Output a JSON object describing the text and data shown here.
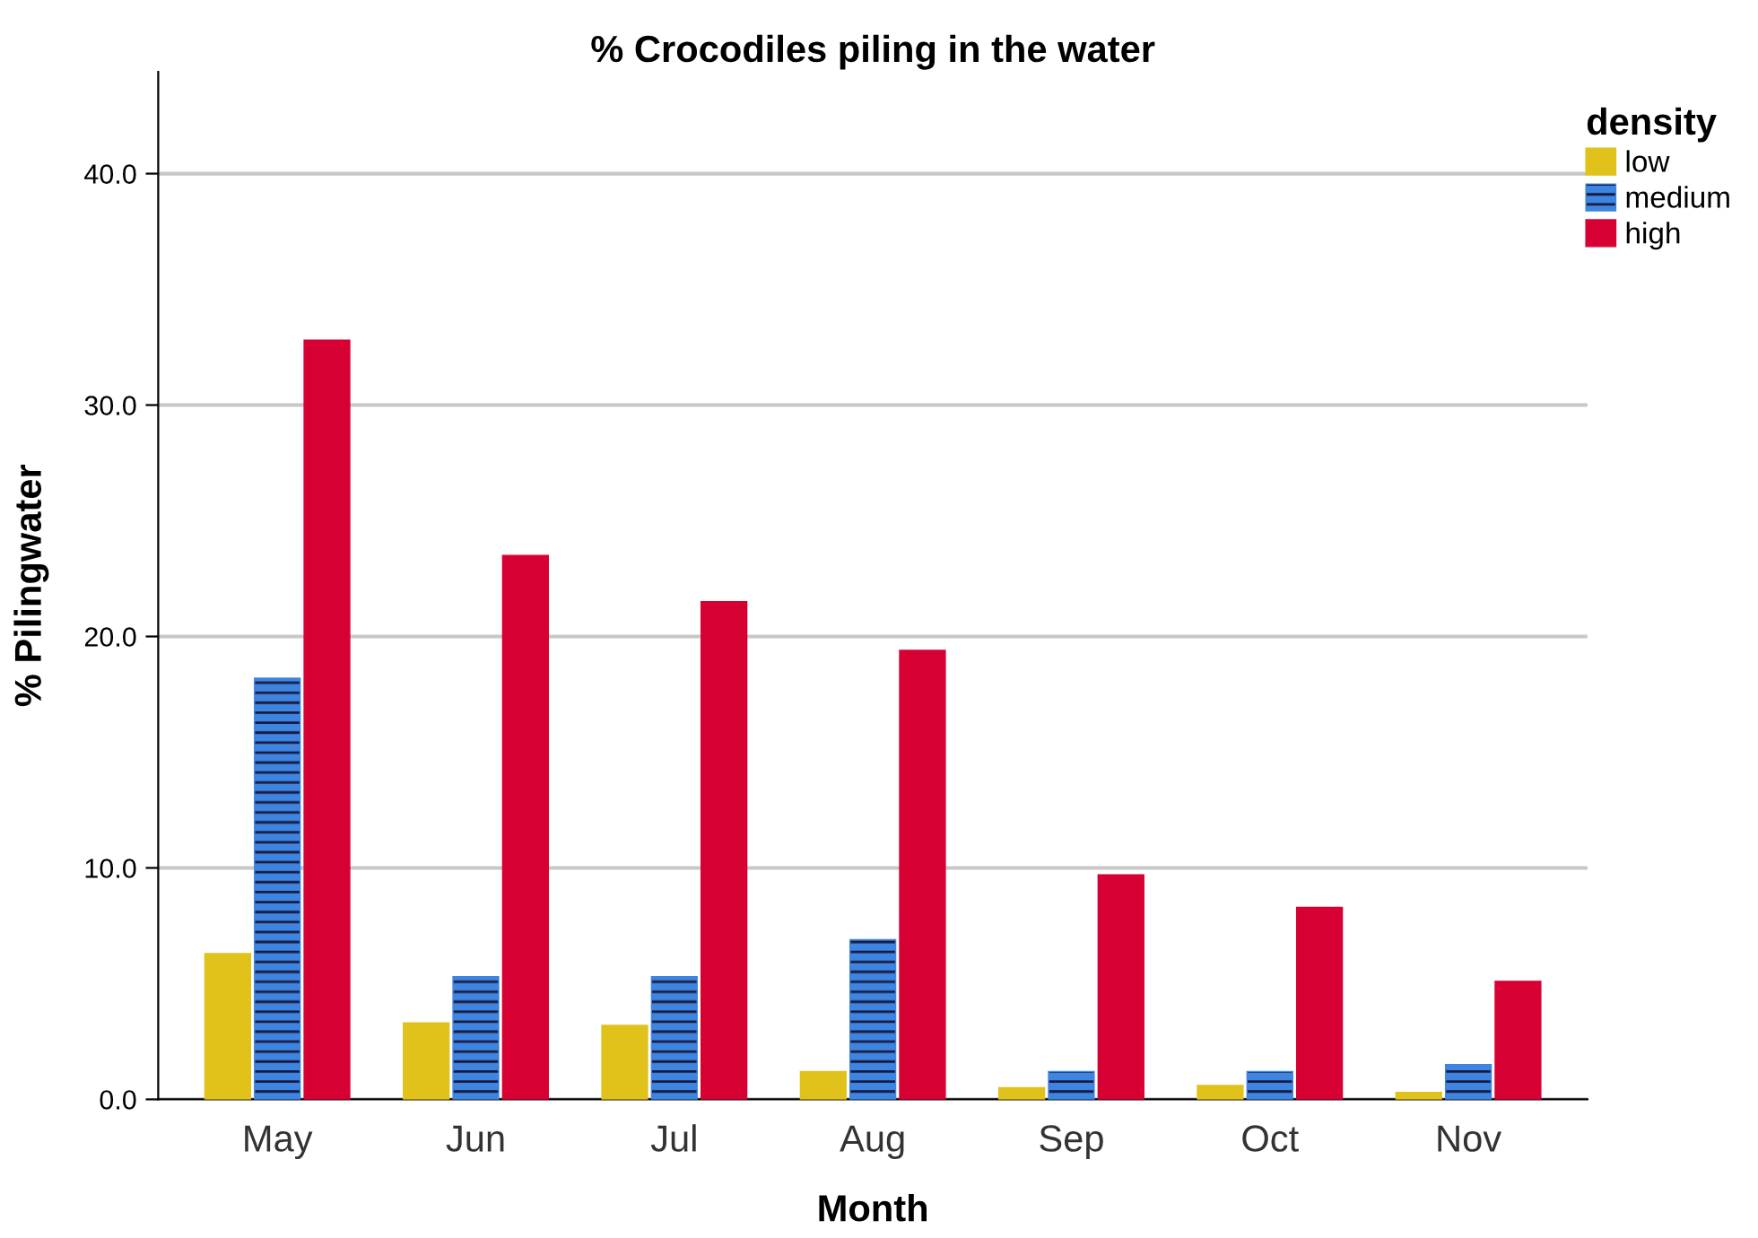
{
  "chart_data": {
    "type": "bar",
    "title": "% Crocodiles piling in the water",
    "xlabel": "Month",
    "ylabel": "% Pilingwater",
    "legend_title": "density",
    "categories": [
      "May",
      "Jun",
      "Jul",
      "Aug",
      "Sep",
      "Oct",
      "Nov"
    ],
    "series": [
      {
        "name": "low",
        "color": "#e1c21b",
        "values": [
          6.3,
          3.3,
          3.2,
          1.2,
          0.5,
          0.6,
          0.3
        ]
      },
      {
        "name": "medium",
        "color": "#3d85e0",
        "values": [
          18.2,
          5.3,
          5.3,
          6.9,
          1.2,
          1.2,
          1.5
        ]
      },
      {
        "name": "high",
        "color": "#d70032",
        "values": [
          32.8,
          23.5,
          21.5,
          19.4,
          9.7,
          8.3,
          5.1
        ]
      }
    ],
    "ylim": [
      0,
      44.4
    ],
    "yticks": [
      {
        "value": 0,
        "label": "0.0"
      },
      {
        "value": 10,
        "label": "10.0"
      },
      {
        "value": 20,
        "label": "20.0"
      },
      {
        "value": 30,
        "label": "30.0"
      },
      {
        "value": 40,
        "label": "40.0"
      }
    ],
    "grid": "y",
    "legend": "top right"
  }
}
